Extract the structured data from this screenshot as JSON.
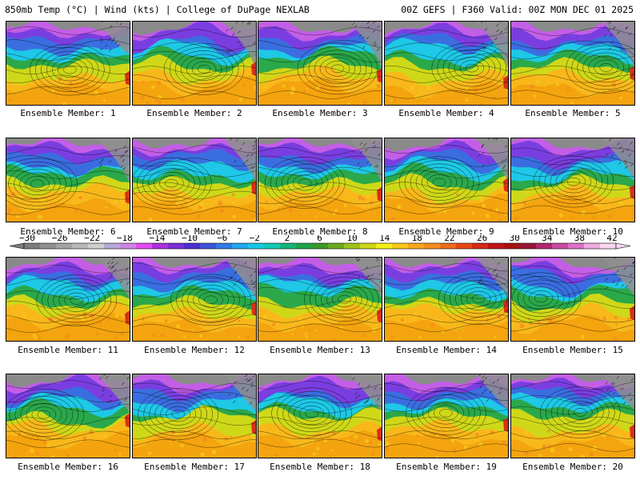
{
  "header": {
    "left": "850mb Temp (°C) | Wind (kts) | College of DuPage NEXLAB",
    "right": "00Z GEFS | F360 Valid: 00Z MON DEC 01 2025"
  },
  "legend": {
    "tick_labels": [
      "−30",
      "−26",
      "−22",
      "−18",
      "−14",
      "−10",
      "−6",
      "−2",
      "2",
      "6",
      "10",
      "14",
      "18",
      "22",
      "26",
      "30",
      "34",
      "38",
      "42"
    ],
    "colors": [
      "#7d7d7d",
      "#8f8f8f",
      "#a3a3a3",
      "#b8b8b8",
      "#cfcfcf",
      "#b5a8d6",
      "#cc84e6",
      "#e24cf0",
      "#b02fe0",
      "#7a2ed8",
      "#4b2fd0",
      "#3d52d8",
      "#2f7ae6",
      "#1ea6f0",
      "#14c8e6",
      "#10c8b4",
      "#12b47a",
      "#1ea24a",
      "#3c9a2a",
      "#6caa20",
      "#9cc21a",
      "#cfd818",
      "#f4f014",
      "#f8c81a",
      "#f8a81e",
      "#f48c1e",
      "#ee6c1c",
      "#e84818",
      "#d82818",
      "#c01414",
      "#a81212",
      "#9a1438",
      "#b02870",
      "#c84aa0",
      "#dc70c8",
      "#ecaade",
      "#f8d6f0"
    ],
    "unit": "°C"
  },
  "panels": [
    {
      "caption": "Ensemble Member: 1",
      "member": 1
    },
    {
      "caption": "Ensemble Member: 2",
      "member": 2
    },
    {
      "caption": "Ensemble Member: 3",
      "member": 3
    },
    {
      "caption": "Ensemble Member: 4",
      "member": 4
    },
    {
      "caption": "Ensemble Member: 5",
      "member": 5
    },
    {
      "caption": "Ensemble Member: 6",
      "member": 6
    },
    {
      "caption": "Ensemble Member: 7",
      "member": 7
    },
    {
      "caption": "Ensemble Member: 8",
      "member": 8
    },
    {
      "caption": "Ensemble Member: 9",
      "member": 9
    },
    {
      "caption": "Ensemble Member: 10",
      "member": 10
    },
    {
      "caption": "Ensemble Member: 11",
      "member": 11
    },
    {
      "caption": "Ensemble Member: 12",
      "member": 12
    },
    {
      "caption": "Ensemble Member: 13",
      "member": 13
    },
    {
      "caption": "Ensemble Member: 14",
      "member": 14
    },
    {
      "caption": "Ensemble Member: 15",
      "member": 15
    },
    {
      "caption": "Ensemble Member: 16",
      "member": 16
    },
    {
      "caption": "Ensemble Member: 17",
      "member": 17
    },
    {
      "caption": "Ensemble Member: 18",
      "member": 18
    },
    {
      "caption": "Ensemble Member: 19",
      "member": 19
    },
    {
      "caption": "Ensemble Member: 20",
      "member": 20
    }
  ]
}
